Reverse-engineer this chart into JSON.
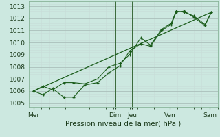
{
  "background_color": "#cce8e0",
  "grid_color_major": "#aaccC4",
  "grid_color_minor": "#bcd8d0",
  "line_color": "#1a5c1a",
  "ylabel_min": 1005,
  "ylabel_max": 1013,
  "xlabel": "Pression niveau de la mer( hPa )",
  "xtick_labels": [
    "Mer",
    "Dim",
    "Jeu",
    "Ven",
    "Sam"
  ],
  "xtick_positions": [
    0,
    5.1,
    6.15,
    8.5,
    11.0
  ],
  "line1_x": [
    0,
    0.6,
    1.2,
    1.9,
    2.5,
    3.2,
    4.0,
    4.7,
    5.4,
    6.0,
    6.7,
    7.3,
    8.0,
    8.6,
    8.9,
    9.4,
    10.0,
    10.7,
    11.1
  ],
  "line1_y": [
    1006.0,
    1005.7,
    1006.2,
    1005.5,
    1005.5,
    1006.5,
    1006.7,
    1007.5,
    1008.1,
    1009.3,
    1009.9,
    1009.7,
    1011.0,
    1011.5,
    1012.5,
    1012.6,
    1012.1,
    1011.4,
    1012.5
  ],
  "line2_x": [
    0,
    0.6,
    1.2,
    1.9,
    2.5,
    3.2,
    4.0,
    4.7,
    5.4,
    6.0,
    6.7,
    7.3,
    8.0,
    8.6,
    8.9,
    9.4,
    10.0,
    10.7,
    11.1
  ],
  "line2_y": [
    1006.0,
    1006.4,
    1006.1,
    1006.7,
    1006.7,
    1006.6,
    1007.0,
    1008.0,
    1008.3,
    1009.0,
    1010.4,
    1009.8,
    1011.1,
    1011.6,
    1012.6,
    1012.5,
    1012.2,
    1011.5,
    1012.5
  ],
  "trend_x": [
    0,
    11.1
  ],
  "trend_y": [
    1006.0,
    1012.5
  ],
  "vline_positions": [
    5.1,
    6.15,
    8.5,
    11.0
  ]
}
